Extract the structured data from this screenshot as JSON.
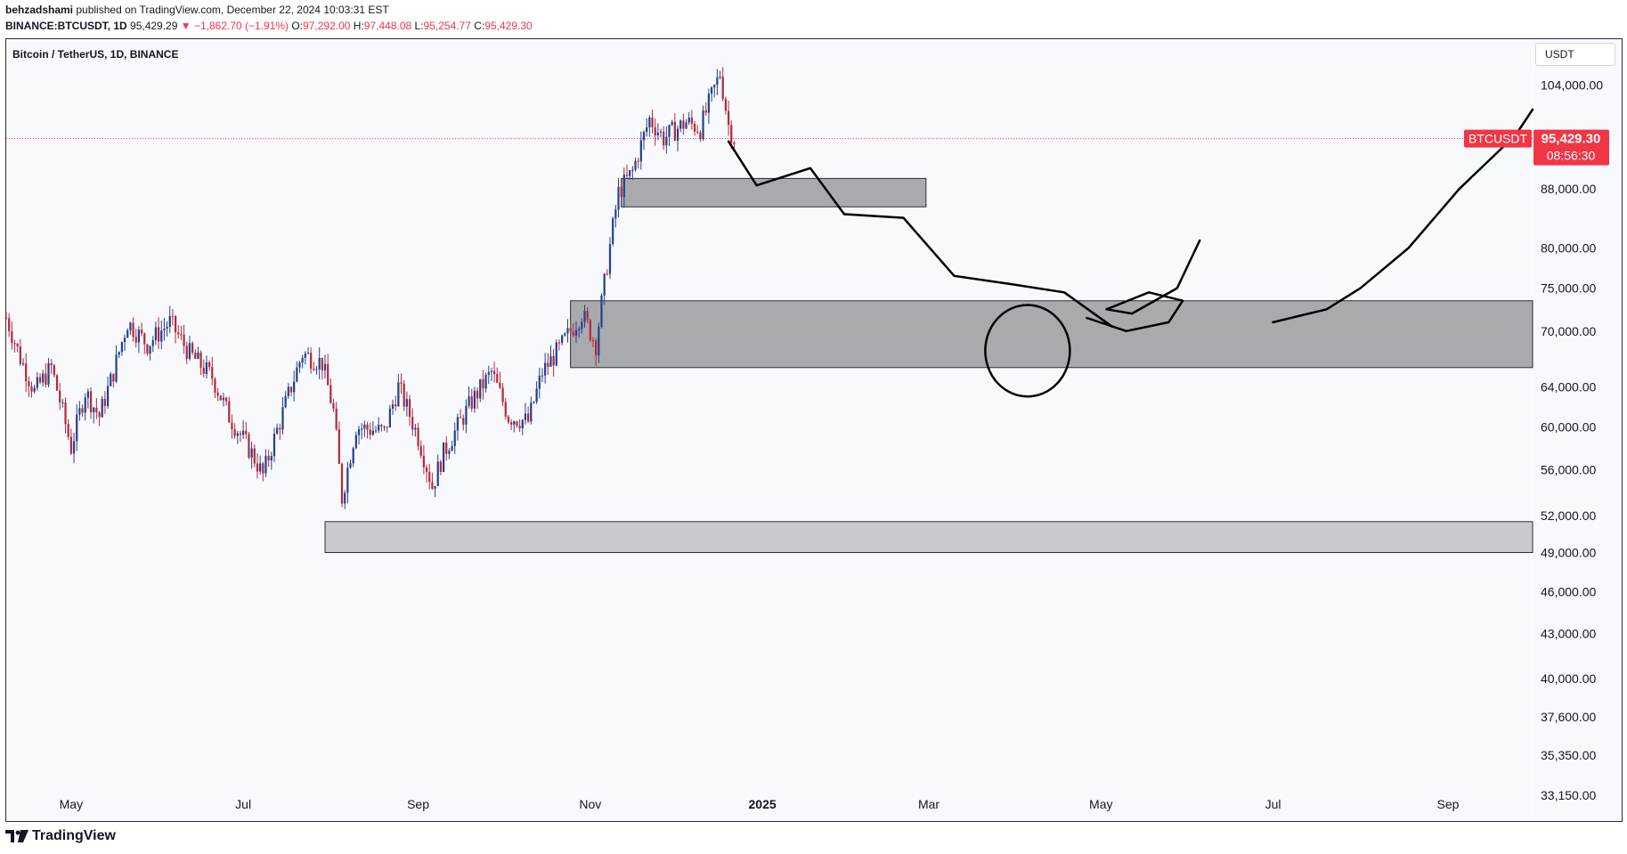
{
  "header": {
    "author": "behzadshami",
    "published_text": " published on TradingView.com, December 22, 2024 10:03:31 EST",
    "symbol_line": "BINANCE:BTCUSDT, 1D",
    "last": "95,429.29",
    "change": "▼ −1,862.70 (−1.91%)",
    "o_label": "O:",
    "o_value": "97,292.00",
    "h_label": "H:",
    "h_value": "97,448.08",
    "l_label": "L:",
    "l_value": "95,254.77",
    "c_label": "C:",
    "c_value": "95,429.30"
  },
  "chart_title": "Bitcoin / TetherUS, 1D, BINANCE",
  "currency": "USDT",
  "footer": {
    "brand": "TradingView"
  },
  "colors": {
    "up": "#26408b",
    "down": "#b22a3a",
    "price_line": "#f23645",
    "zone_fill": "#a9aaae",
    "zone_light": "#c9cacd",
    "background": "#f8f9fd"
  },
  "chart_data": {
    "type": "candlestick",
    "symbol": "BTCUSDT",
    "timeframe": "1D",
    "scale": "log",
    "x_axis": {
      "ticks": [
        "May",
        "Jul",
        "Sep",
        "Nov",
        "2025",
        "Mar",
        "May",
        "Jul",
        "Sep"
      ],
      "tick_dates": [
        "2024-05-01",
        "2024-07-01",
        "2024-09-01",
        "2024-11-01",
        "2025-01-01",
        "2025-03-01",
        "2025-05-01",
        "2025-07-01",
        "2025-09-01"
      ],
      "range": [
        "2024-04-08",
        "2025-10-01"
      ]
    },
    "y_axis": {
      "ticks": [
        "104,000.00",
        "88,000.00",
        "80,000.00",
        "75,000.00",
        "70,000.00",
        "64,000.00",
        "60,000.00",
        "56,000.00",
        "52,000.00",
        "49,000.00",
        "46,000.00",
        "43,000.00",
        "40,000.00",
        "37,600.00",
        "35,350.00",
        "33,150.00"
      ],
      "tick_values": [
        104000,
        88000,
        80000,
        75000,
        70000,
        64000,
        60000,
        56000,
        52000,
        49000,
        46000,
        43000,
        40000,
        37600,
        35350,
        33150
      ],
      "range": [
        31800,
        112000
      ]
    },
    "current_price": {
      "label": "BTCUSDT",
      "value": 95429.3,
      "value_text": "95,429.30",
      "countdown": "08:56:30"
    },
    "price_path": [
      [
        "2024-04-08",
        71500
      ],
      [
        "2024-04-13",
        67000
      ],
      [
        "2024-04-18",
        63500
      ],
      [
        "2024-04-24",
        66000
      ],
      [
        "2024-05-01",
        58000
      ],
      [
        "2024-05-06",
        63500
      ],
      [
        "2024-05-11",
        61000
      ],
      [
        "2024-05-16",
        65500
      ],
      [
        "2024-05-21",
        71000
      ],
      [
        "2024-05-28",
        68500
      ],
      [
        "2024-06-05",
        71000
      ],
      [
        "2024-06-12",
        67500
      ],
      [
        "2024-06-20",
        65000
      ],
      [
        "2024-06-26",
        61000
      ],
      [
        "2024-07-04",
        57500
      ],
      [
        "2024-07-08",
        55500
      ],
      [
        "2024-07-14",
        60500
      ],
      [
        "2024-07-22",
        67500
      ],
      [
        "2024-07-29",
        66500
      ],
      [
        "2024-08-02",
        61500
      ],
      [
        "2024-08-05",
        53500
      ],
      [
        "2024-08-10",
        60000
      ],
      [
        "2024-08-20",
        59500
      ],
      [
        "2024-08-25",
        64000
      ],
      [
        "2024-09-01",
        59000
      ],
      [
        "2024-09-06",
        54500
      ],
      [
        "2024-09-10",
        57500
      ],
      [
        "2024-09-20",
        62500
      ],
      [
        "2024-09-27",
        65500
      ],
      [
        "2024-10-03",
        61000
      ],
      [
        "2024-10-10",
        60500
      ],
      [
        "2024-10-15",
        65500
      ],
      [
        "2024-10-21",
        68000
      ],
      [
        "2024-10-29",
        72000
      ],
      [
        "2024-11-03",
        68500
      ],
      [
        "2024-11-06",
        75500
      ],
      [
        "2024-11-11",
        87500
      ],
      [
        "2024-11-16",
        90500
      ],
      [
        "2024-11-22",
        98500
      ],
      [
        "2024-11-27",
        95500
      ],
      [
        "2024-12-05",
        98000
      ],
      [
        "2024-12-10",
        97000
      ],
      [
        "2024-12-17",
        106000
      ],
      [
        "2024-12-20",
        97500
      ],
      [
        "2024-12-22",
        95429
      ]
    ],
    "zones": [
      {
        "from": "2024-11-12",
        "to": "2025-02-28",
        "low": 85500,
        "high": 89500
      },
      {
        "from": "2024-10-25",
        "to": "2025-10-01",
        "low": 66000,
        "high": 73500
      },
      {
        "from": "2024-07-30",
        "to": "2025-10-01",
        "low": 49000,
        "high": 51500
      }
    ],
    "annotations": [
      {
        "type": "freehand",
        "points": [
          [
            "2024-12-20",
            95000
          ],
          [
            "2024-12-30",
            88500
          ],
          [
            "2025-01-18",
            91000
          ],
          [
            "2025-01-30",
            84500
          ],
          [
            "2025-02-20",
            84000
          ],
          [
            "2025-03-10",
            76500
          ],
          [
            "2025-03-30",
            75500
          ],
          [
            "2025-04-18",
            74500
          ],
          [
            "2025-05-05",
            70500
          ]
        ]
      },
      {
        "type": "circle",
        "center": [
          "2025-04-05",
          68500
        ],
        "rx_days": 15,
        "ry_price": [
          63000,
          73000
        ]
      },
      {
        "type": "freehand",
        "points": [
          [
            "2025-04-26",
            71500
          ],
          [
            "2025-05-10",
            70000
          ],
          [
            "2025-05-25",
            71000
          ],
          [
            "2025-05-30",
            73500
          ],
          [
            "2025-05-18",
            74500
          ],
          [
            "2025-05-03",
            72500
          ],
          [
            "2025-05-12",
            72000
          ],
          [
            "2025-05-28",
            75000
          ],
          [
            "2025-06-05",
            81000
          ]
        ]
      },
      {
        "type": "freehand",
        "points": [
          [
            "2025-07-01",
            71000
          ],
          [
            "2025-07-20",
            72500
          ],
          [
            "2025-08-01",
            75000
          ],
          [
            "2025-08-18",
            80000
          ],
          [
            "2025-09-05",
            88000
          ],
          [
            "2025-09-25",
            96000
          ],
          [
            "2025-10-01",
            100000
          ]
        ]
      }
    ]
  }
}
